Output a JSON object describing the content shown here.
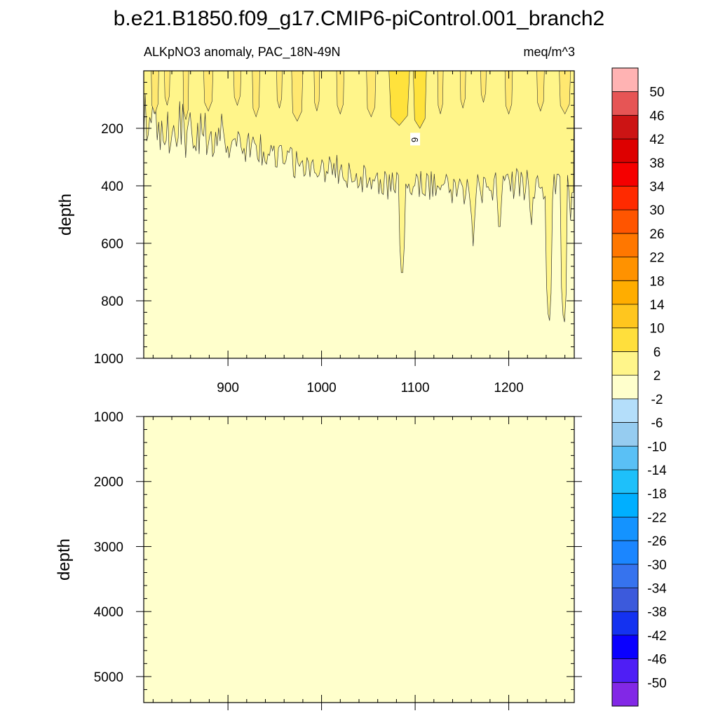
{
  "title": "b.e21.B1850.f09_g17.CMIP6-piControl.001_branch2",
  "chart_data": [
    {
      "type": "heatmap",
      "panel": "upper",
      "left_label": "ALKpNO3 anomaly, PAC_18N-49N",
      "right_label": "meq/m^3",
      "ylabel": "depth",
      "xlabel": "",
      "xlim": [
        810,
        1270
      ],
      "ylim": [
        1000,
        0
      ],
      "x_ticks": [
        900,
        1000,
        1100,
        1200
      ],
      "y_ticks": [
        200,
        400,
        600,
        800,
        1000
      ],
      "contour_labels": [
        {
          "text": "6",
          "x": 1100,
          "y": 240
        }
      ],
      "description_values": {
        "surface_range": [
          2,
          10
        ],
        "deep_value_band": [
          -2,
          2
        ]
      }
    },
    {
      "type": "heatmap",
      "panel": "lower",
      "ylabel": "depth",
      "xlim": [
        810,
        1270
      ],
      "ylim": [
        5400,
        1000
      ],
      "y_ticks": [
        1000,
        2000,
        3000,
        4000,
        5000
      ],
      "uniform_band": [
        -2,
        2
      ]
    }
  ],
  "colorbar": {
    "labels": [
      "50",
      "46",
      "42",
      "38",
      "34",
      "30",
      "26",
      "22",
      "18",
      "14",
      "10",
      "6",
      "2",
      "-2",
      "-6",
      "-10",
      "-14",
      "-18",
      "-22",
      "-26",
      "-30",
      "-34",
      "-38",
      "-42",
      "-46",
      "-50"
    ],
    "colors": [
      "#ffb3b3",
      "#e65555",
      "#cc1414",
      "#dd0000",
      "#f50000",
      "#ff2a00",
      "#ff5500",
      "#ff7700",
      "#ff9200",
      "#ffad00",
      "#ffc61e",
      "#ffdf3c",
      "#fff58a",
      "#ffffcc",
      "#b4defa",
      "#96ccf0",
      "#5ac0f5",
      "#1ec0fa",
      "#00afff",
      "#1493ff",
      "#1b86ff",
      "#3673ee",
      "#3c5adc",
      "#1432f0",
      "#0a00ff",
      "#4f1ef5",
      "#8228e6"
    ]
  }
}
